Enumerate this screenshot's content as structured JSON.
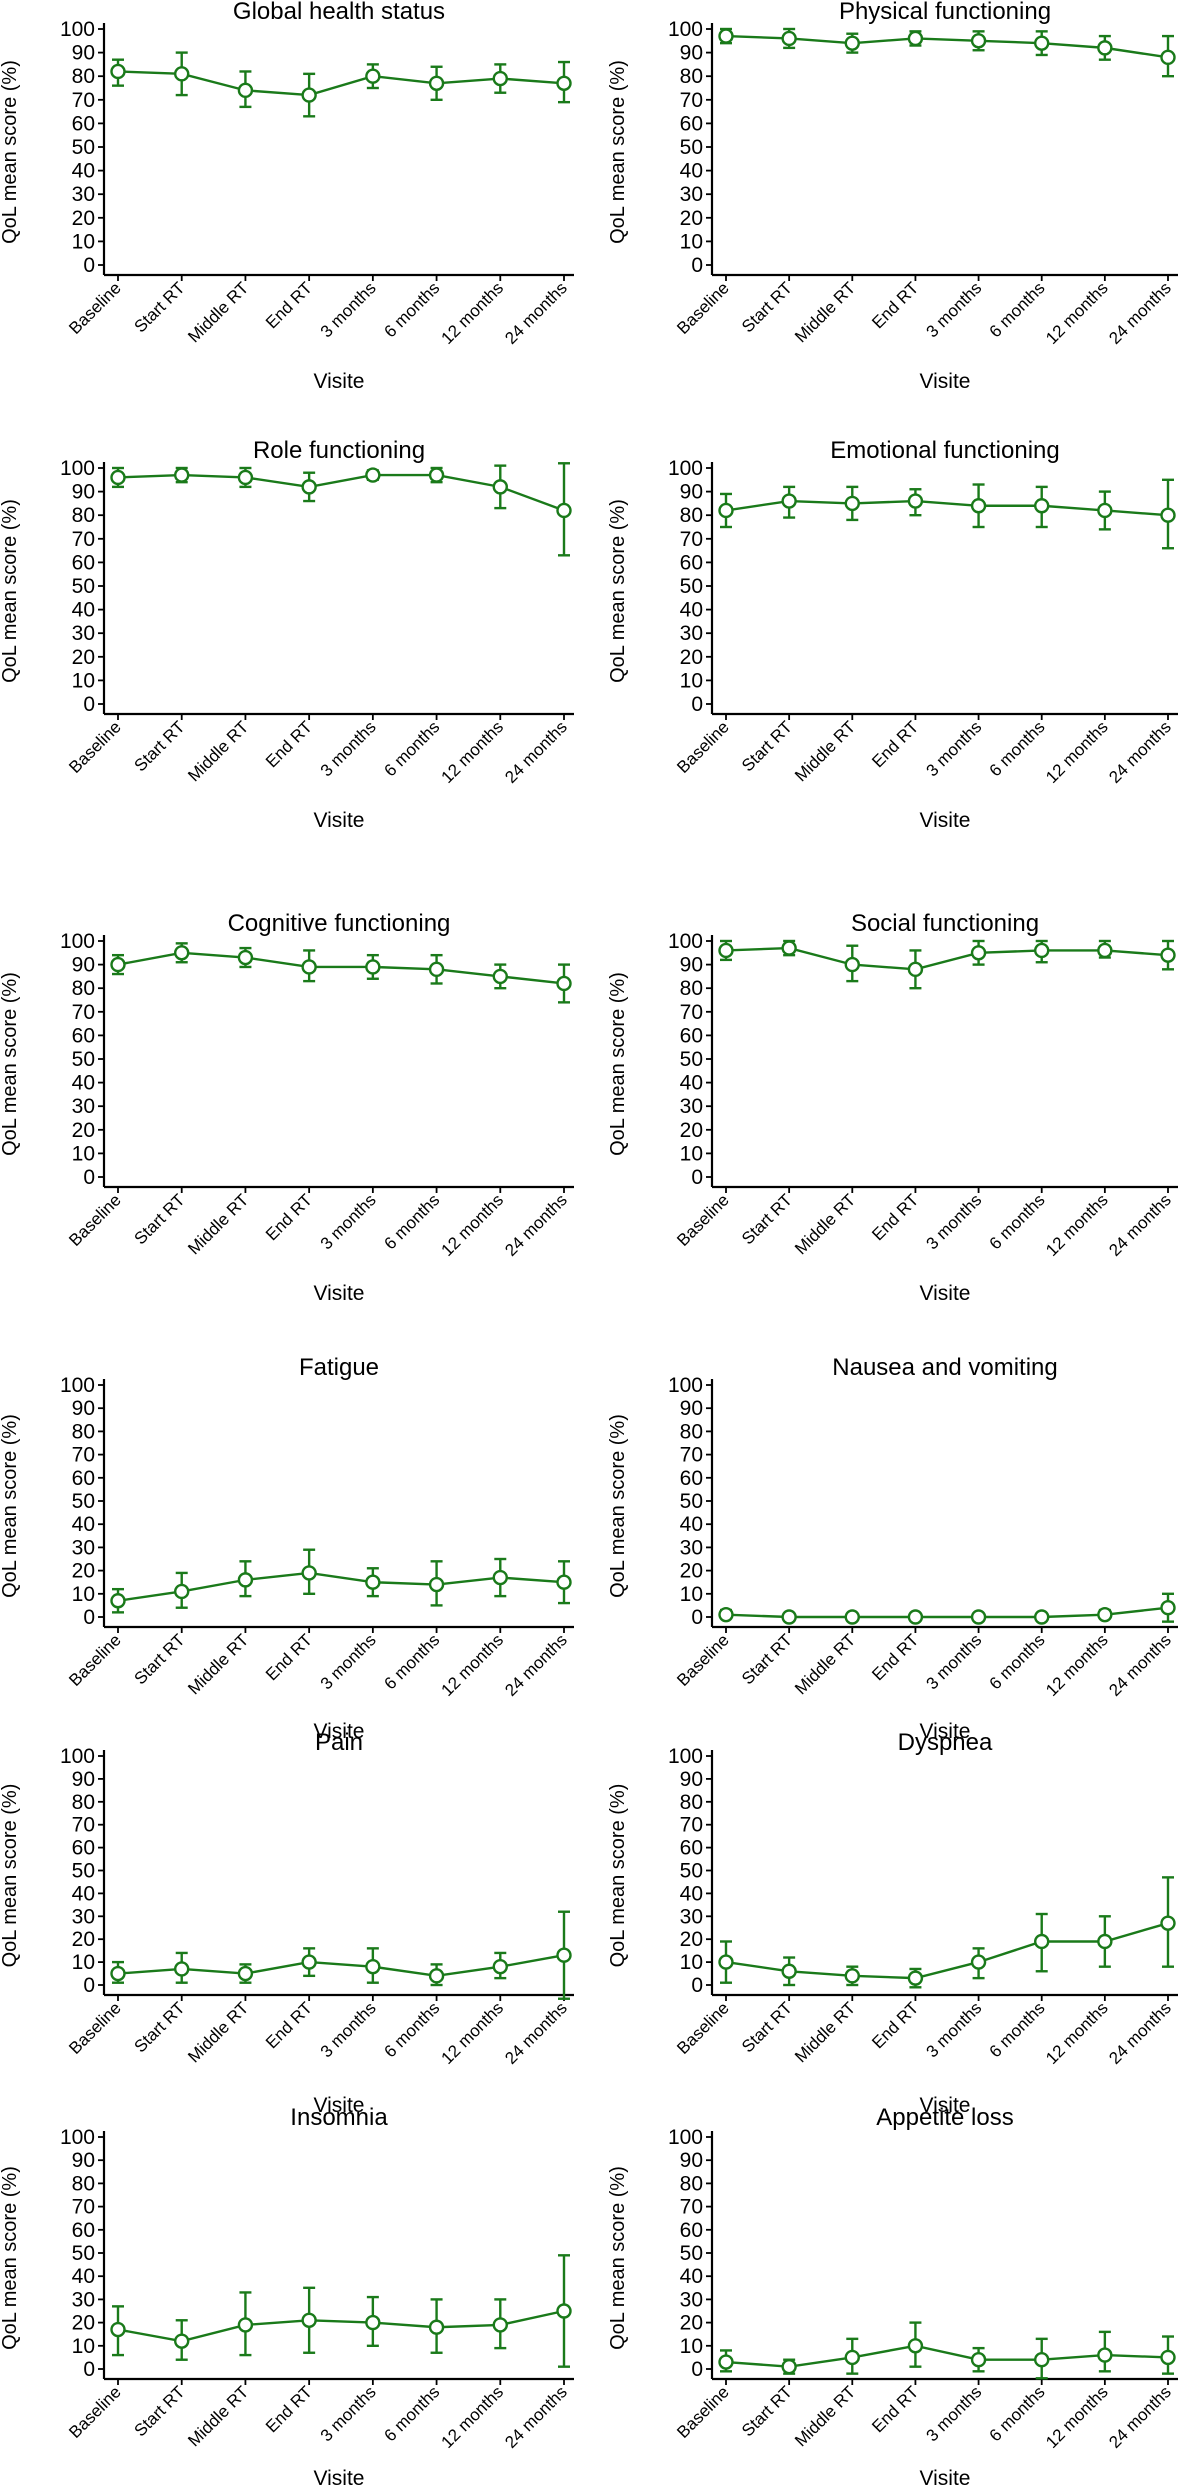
{
  "figure": {
    "categories": [
      "Baseline",
      "Start RT",
      "Middle RT",
      "End RT",
      "3 months",
      "6 months",
      "12 months",
      "24 months"
    ],
    "y_ticks": [
      0,
      10,
      20,
      30,
      40,
      50,
      60,
      70,
      80,
      90,
      100
    ],
    "xlabel": "Visite",
    "ylabel": "QoL mean score (%)",
    "line_color": "#1a7a1a"
  },
  "chart_data": [
    {
      "type": "line",
      "title": "Global health status",
      "xlabel": "Visite",
      "ylabel": "QoL mean score (%)",
      "ylim": [
        0,
        100
      ],
      "categories": [
        "Baseline",
        "Start RT",
        "Middle RT",
        "End RT",
        "3 months",
        "6 months",
        "12 months",
        "24 months"
      ],
      "values": [
        82,
        81,
        74,
        72,
        80,
        77,
        79,
        77
      ],
      "lower": [
        76,
        72,
        67,
        63,
        75,
        70,
        73,
        69
      ],
      "upper": [
        87,
        90,
        82,
        81,
        85,
        84,
        85,
        86
      ]
    },
    {
      "type": "line",
      "title": "Physical functioning",
      "xlabel": "Visite",
      "ylabel": "QoL mean score (%)",
      "ylim": [
        0,
        100
      ],
      "categories": [
        "Baseline",
        "Start RT",
        "Middle RT",
        "End RT",
        "3 months",
        "6 months",
        "12 months",
        "24 months"
      ],
      "values": [
        97,
        96,
        94,
        96,
        95,
        94,
        92,
        88
      ],
      "lower": [
        94,
        92,
        90,
        93,
        91,
        89,
        87,
        80
      ],
      "upper": [
        100,
        100,
        98,
        99,
        99,
        99,
        97,
        97
      ]
    },
    {
      "type": "line",
      "title": "Role functioning",
      "xlabel": "Visite",
      "ylabel": "QoL mean score (%)",
      "ylim": [
        0,
        100
      ],
      "categories": [
        "Baseline",
        "Start RT",
        "Middle RT",
        "End RT",
        "3 months",
        "6 months",
        "12 months",
        "24 months"
      ],
      "values": [
        96,
        97,
        96,
        92,
        97,
        97,
        92,
        82
      ],
      "lower": [
        92,
        94,
        92,
        86,
        95,
        94,
        83,
        63
      ],
      "upper": [
        100,
        100,
        100,
        98,
        99,
        100,
        101,
        102
      ]
    },
    {
      "type": "line",
      "title": "Emotional functioning",
      "xlabel": "Visite",
      "ylabel": "QoL mean score (%)",
      "ylim": [
        0,
        100
      ],
      "categories": [
        "Baseline",
        "Start RT",
        "Middle RT",
        "End RT",
        "3 months",
        "6 months",
        "12 months",
        "24 months"
      ],
      "values": [
        82,
        86,
        85,
        86,
        84,
        84,
        82,
        80
      ],
      "lower": [
        75,
        79,
        78,
        80,
        75,
        75,
        74,
        66
      ],
      "upper": [
        89,
        92,
        92,
        91,
        93,
        92,
        90,
        95
      ]
    },
    {
      "type": "line",
      "title": "Cognitive functioning",
      "xlabel": "Visite",
      "ylabel": "QoL mean score (%)",
      "ylim": [
        0,
        100
      ],
      "categories": [
        "Baseline",
        "Start RT",
        "Middle RT",
        "End RT",
        "3 months",
        "6 months",
        "12 months",
        "24 months"
      ],
      "values": [
        90,
        95,
        93,
        89,
        89,
        88,
        85,
        82
      ],
      "lower": [
        86,
        91,
        89,
        83,
        84,
        82,
        80,
        74
      ],
      "upper": [
        94,
        99,
        97,
        96,
        94,
        94,
        90,
        90
      ]
    },
    {
      "type": "line",
      "title": "Social functioning",
      "xlabel": "Visite",
      "ylabel": "QoL mean score (%)",
      "ylim": [
        0,
        100
      ],
      "categories": [
        "Baseline",
        "Start RT",
        "Middle RT",
        "End RT",
        "3 months",
        "6 months",
        "12 months",
        "24 months"
      ],
      "values": [
        96,
        97,
        90,
        88,
        95,
        96,
        96,
        94
      ],
      "lower": [
        92,
        94,
        83,
        80,
        90,
        91,
        93,
        88
      ],
      "upper": [
        100,
        100,
        98,
        96,
        100,
        100,
        100,
        100
      ]
    },
    {
      "type": "line",
      "title": "Fatigue",
      "xlabel": "Visite",
      "ylabel": "QoL mean score (%)",
      "ylim": [
        0,
        100
      ],
      "categories": [
        "Baseline",
        "Start RT",
        "Middle RT",
        "End RT",
        "3 months",
        "6 months",
        "12 months",
        "24 months"
      ],
      "values": [
        7,
        11,
        16,
        19,
        15,
        14,
        17,
        15
      ],
      "lower": [
        2,
        4,
        9,
        10,
        9,
        5,
        9,
        6
      ],
      "upper": [
        12,
        19,
        24,
        29,
        21,
        24,
        25,
        24
      ]
    },
    {
      "type": "line",
      "title": "Nausea and vomiting",
      "xlabel": "Visite",
      "ylabel": "QoL mean score (%)",
      "ylim": [
        0,
        100
      ],
      "categories": [
        "Baseline",
        "Start RT",
        "Middle RT",
        "End RT",
        "3 months",
        "6 months",
        "12 months",
        "24 months"
      ],
      "values": [
        1,
        0,
        0,
        0,
        0,
        0,
        1,
        4
      ],
      "lower": [
        0,
        0,
        0,
        0,
        0,
        0,
        0,
        -2
      ],
      "upper": [
        3,
        0,
        0,
        0,
        0,
        0,
        3,
        10
      ]
    },
    {
      "type": "line",
      "title": "Pain",
      "xlabel": "Visite",
      "ylabel": "QoL mean score (%)",
      "ylim": [
        0,
        100
      ],
      "categories": [
        "Baseline",
        "Start RT",
        "Middle RT",
        "End RT",
        "3 months",
        "6 months",
        "12 months",
        "24 months"
      ],
      "values": [
        5,
        7,
        5,
        10,
        8,
        4,
        8,
        13
      ],
      "lower": [
        1,
        1,
        1,
        4,
        1,
        0,
        3,
        -6
      ],
      "upper": [
        10,
        14,
        9,
        16,
        16,
        9,
        14,
        32
      ]
    },
    {
      "type": "line",
      "title": "Dyspnea",
      "xlabel": "Visite",
      "ylabel": "QoL mean score (%)",
      "ylim": [
        0,
        100
      ],
      "categories": [
        "Baseline",
        "Start RT",
        "Middle RT",
        "End RT",
        "3 months",
        "6 months",
        "12 months",
        "24 months"
      ],
      "values": [
        10,
        6,
        4,
        3,
        10,
        19,
        19,
        27
      ],
      "lower": [
        1,
        0,
        0,
        -1,
        3,
        6,
        8,
        8
      ],
      "upper": [
        19,
        12,
        8,
        7,
        16,
        31,
        30,
        47
      ]
    },
    {
      "type": "line",
      "title": "Insomnia",
      "xlabel": "Visite",
      "ylabel": "QoL mean score (%)",
      "ylim": [
        0,
        100
      ],
      "categories": [
        "Baseline",
        "Start RT",
        "Middle RT",
        "End RT",
        "3 months",
        "6 months",
        "12 months",
        "24 months"
      ],
      "values": [
        17,
        12,
        19,
        21,
        20,
        18,
        19,
        25
      ],
      "lower": [
        6,
        4,
        6,
        7,
        10,
        7,
        9,
        1
      ],
      "upper": [
        27,
        21,
        33,
        35,
        31,
        30,
        30,
        49
      ]
    },
    {
      "type": "line",
      "title": "Appetite loss",
      "xlabel": "Visite",
      "ylabel": "QoL mean score (%)",
      "ylim": [
        0,
        100
      ],
      "categories": [
        "Baseline",
        "Start RT",
        "Middle RT",
        "End RT",
        "3 months",
        "6 months",
        "12 months",
        "24 months"
      ],
      "values": [
        3,
        1,
        5,
        10,
        4,
        4,
        6,
        5
      ],
      "lower": [
        -1,
        -2,
        -2,
        1,
        -1,
        -4,
        -1,
        -2
      ],
      "upper": [
        8,
        4,
        13,
        20,
        9,
        13,
        16,
        14
      ]
    }
  ]
}
